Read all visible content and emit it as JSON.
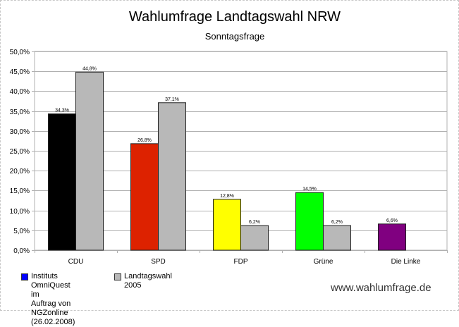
{
  "chart_data": {
    "type": "bar",
    "title": "Wahlumfrage Landtagswahl NRW",
    "subtitle": "Sonntagsfrage",
    "categories": [
      "CDU",
      "SPD",
      "FDP",
      "Grüne",
      "Die Linke"
    ],
    "series": [
      {
        "name": "Instituts OmniQuest im\nAuftrag von NGZonline\n(26.02.2008)",
        "values": [
          34.3,
          26.8,
          12.8,
          14.5,
          6.6
        ],
        "labels": [
          "34,3%",
          "26,8%",
          "12,8%",
          "14,5%",
          "6,6%"
        ],
        "colors": [
          "#000000",
          "#dd2200",
          "#ffff00",
          "#00ff00",
          "#800080"
        ],
        "legend_color": "#0000ff"
      },
      {
        "name": "Landtagswahl 2005",
        "values": [
          44.8,
          37.1,
          6.2,
          6.2,
          null
        ],
        "labels": [
          "44,8%",
          "37,1%",
          "6,2%",
          "6,2%",
          ""
        ],
        "color": "#b8b8b8"
      }
    ],
    "ylim": [
      0,
      50
    ],
    "yticks": [
      0,
      5,
      10,
      15,
      20,
      25,
      30,
      35,
      40,
      45,
      50
    ],
    "ytick_labels": [
      "0,0%",
      "5,0%",
      "10,0%",
      "15,0%",
      "20,0%",
      "25,0%",
      "30,0%",
      "35,0%",
      "40,0%",
      "45,0%",
      "50,0%"
    ],
    "grid": true,
    "legend_position": "bottom-left"
  },
  "website": "www.wahlumfrage.de"
}
